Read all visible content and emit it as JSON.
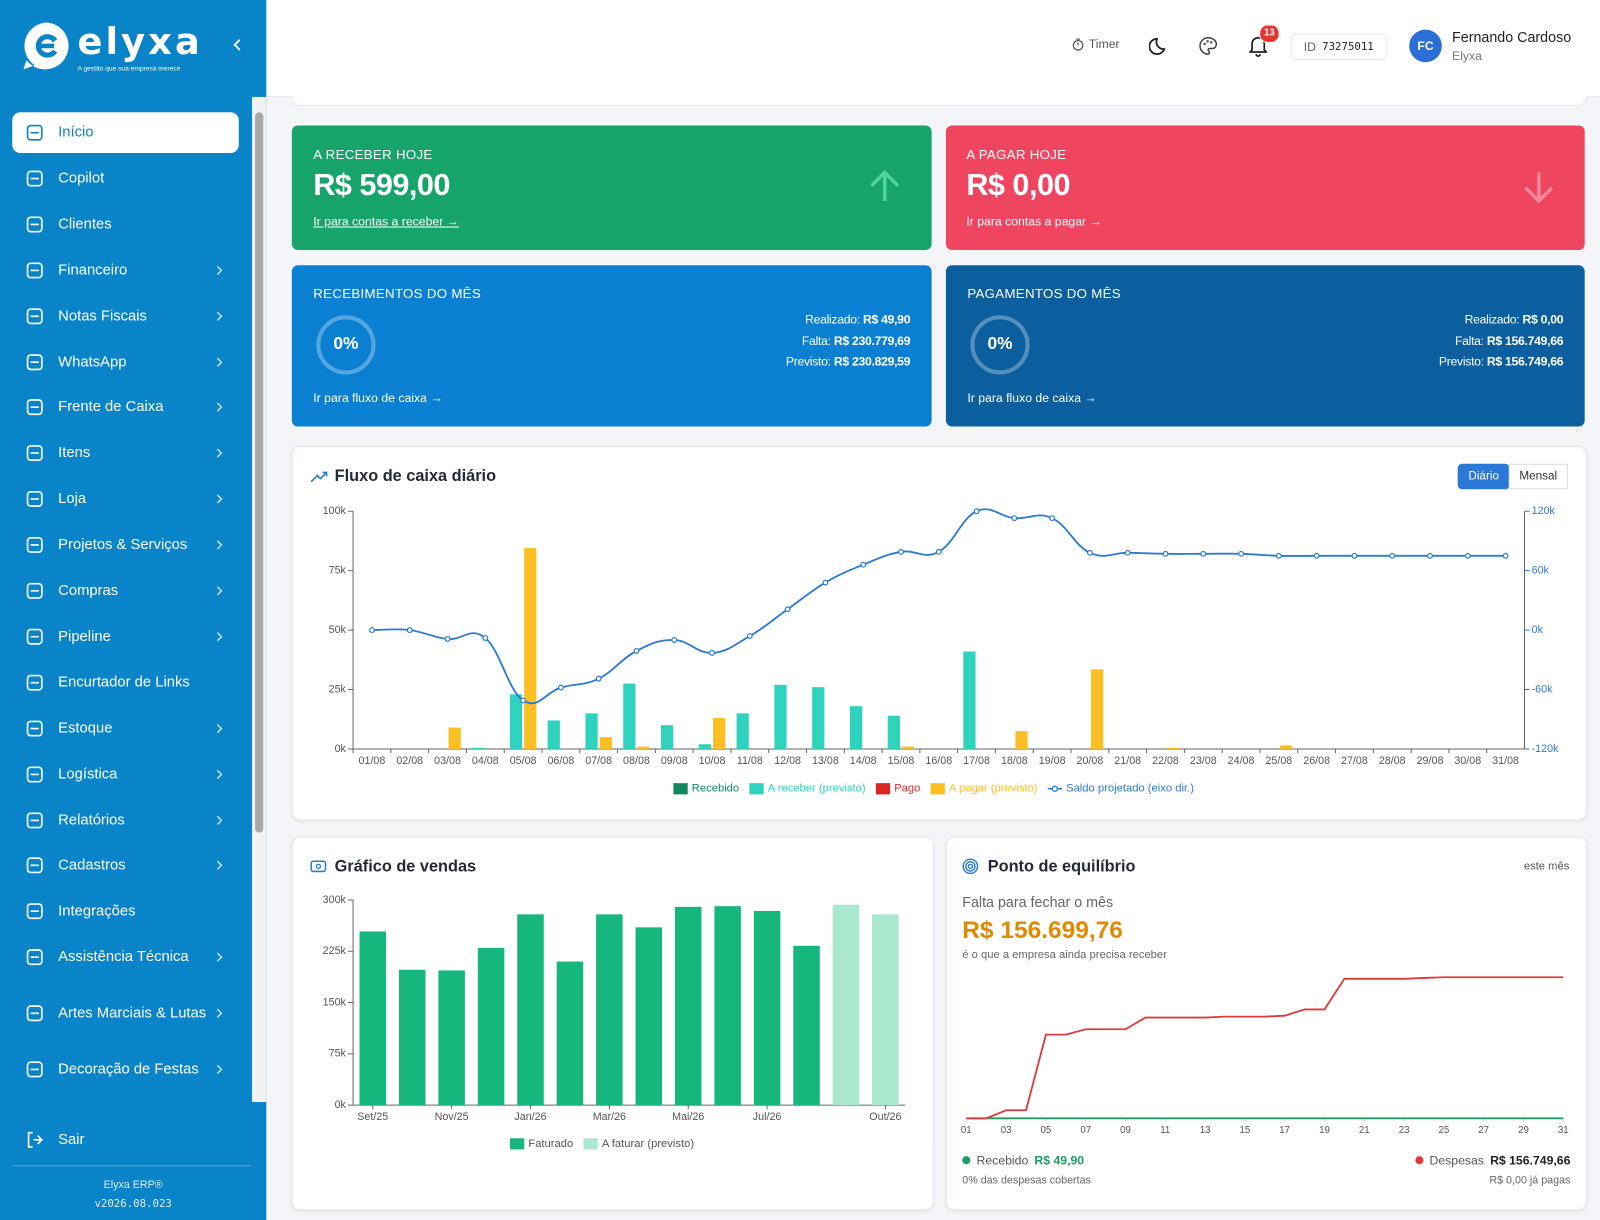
{
  "sidebar": {
    "logo": "elyxa",
    "tagline": "A gestão que sua empresa merece",
    "menu": [
      {
        "label": "Início",
        "submenu": false,
        "active": true
      },
      {
        "label": "Copilot",
        "submenu": false,
        "active": false
      },
      {
        "label": "Clientes",
        "submenu": false,
        "active": false
      },
      {
        "label": "Financeiro",
        "submenu": true,
        "active": false
      },
      {
        "label": "Notas Fiscais",
        "submenu": true,
        "active": false
      },
      {
        "label": "WhatsApp",
        "submenu": true,
        "active": false
      },
      {
        "label": "Frente de Caixa",
        "submenu": true,
        "active": false
      },
      {
        "label": "Itens",
        "submenu": true,
        "active": false
      },
      {
        "label": "Loja",
        "submenu": true,
        "active": false
      },
      {
        "label": "Projetos & Serviços",
        "submenu": true,
        "active": false
      },
      {
        "label": "Compras",
        "submenu": true,
        "active": false
      },
      {
        "label": "Pipeline",
        "submenu": true,
        "active": false
      },
      {
        "label": "Encurtador de Links",
        "submenu": false,
        "active": false
      },
      {
        "label": "Estoque",
        "submenu": true,
        "active": false
      },
      {
        "label": "Logística",
        "submenu": true,
        "active": false
      },
      {
        "label": "Relatórios",
        "submenu": true,
        "active": false
      },
      {
        "label": "Cadastros",
        "submenu": true,
        "active": false
      },
      {
        "label": "Integrações",
        "submenu": false,
        "active": false
      },
      {
        "label": "Assistência Técnica",
        "submenu": true,
        "active": false
      },
      {
        "label": "Artes Marciais & Lutas",
        "submenu": true,
        "active": false
      },
      {
        "label": "Decoração de Festas",
        "submenu": true,
        "active": false
      }
    ],
    "logout": "Sair",
    "product": "Elyxa ERP®",
    "version": "v2026.08.023"
  },
  "header": {
    "timer": "Timer",
    "notifications": 13,
    "id_label": "ID",
    "id": "73275011",
    "avatar": "FC",
    "user": "Fernando Cardoso",
    "company": "Elyxa"
  },
  "cards": [
    {
      "title": "A RECEBER HOJE",
      "value": "R$ 599,00",
      "link": "Ir para contas a receber →",
      "color": "#17a46b"
    },
    {
      "title": "A PAGAR HOJE",
      "value": "R$ 0,00",
      "link": "Ir para contas a pagar →",
      "color": "#ef4560"
    }
  ],
  "month_cards": [
    {
      "title": "RECEBIMENTOS DO MÊS",
      "percent": "0%",
      "color": "#0b80d3",
      "rows": [
        {
          "label": "Realizado:",
          "value": "R$ 49,90"
        },
        {
          "label": "Falta:",
          "value": "R$ 230.779,69"
        },
        {
          "label": "Previsto:",
          "value": "R$ 230.829,59"
        }
      ],
      "link": "Ir para fluxo de caixa →"
    },
    {
      "title": "PAGAMENTOS DO MÊS",
      "percent": "0%",
      "color": "#0b5f9e",
      "rows": [
        {
          "label": "Realizado:",
          "value": "R$ 0,00"
        },
        {
          "label": "Falta:",
          "value": "R$ 156.749,66"
        },
        {
          "label": "Previsto:",
          "value": "R$ 156.749,66"
        }
      ],
      "link": "Ir para fluxo de caixa →"
    }
  ],
  "chart_data": [
    {
      "type": "combo",
      "title": "Fluxo de caixa diário",
      "toggle": [
        "Diário",
        "Mensal"
      ],
      "categories": [
        "01/08",
        "02/08",
        "03/08",
        "04/08",
        "05/08",
        "06/08",
        "07/08",
        "08/08",
        "09/08",
        "10/08",
        "11/08",
        "12/08",
        "13/08",
        "14/08",
        "15/08",
        "16/08",
        "17/08",
        "18/08",
        "19/08",
        "20/08",
        "21/08",
        "22/08",
        "23/08",
        "24/08",
        "25/08",
        "26/08",
        "27/08",
        "28/08",
        "29/08",
        "30/08",
        "31/08"
      ],
      "series": [
        {
          "name": "Recebido",
          "color": "#13865b",
          "type": "bar",
          "stack": "in",
          "values": [
            0,
            0,
            0,
            0,
            0,
            0,
            0,
            0,
            0,
            0,
            0,
            0,
            0,
            0,
            0,
            0,
            0,
            0,
            0,
            0,
            0,
            0,
            0,
            0,
            0,
            0,
            0,
            0,
            0,
            0,
            0
          ]
        },
        {
          "name": "A receber (previsto)",
          "color": "#2fd3bd",
          "type": "bar",
          "stack": "in",
          "values": [
            0,
            0,
            0,
            500,
            23000,
            12000,
            15000,
            27500,
            10000,
            2000,
            15000,
            27000,
            26000,
            18000,
            14000,
            0,
            41000,
            0,
            0,
            0,
            0,
            0,
            0,
            0,
            0,
            0,
            0,
            0,
            0,
            0,
            0
          ]
        },
        {
          "name": "Pago",
          "color": "#dc2626",
          "type": "bar",
          "stack": "out",
          "values": [
            0,
            0,
            0,
            0,
            0,
            0,
            0,
            0,
            0,
            0,
            0,
            0,
            0,
            0,
            0,
            0,
            0,
            0,
            0,
            0,
            0,
            0,
            0,
            0,
            0,
            0,
            0,
            0,
            0,
            0,
            0
          ]
        },
        {
          "name": "A pagar (previsto)",
          "color": "#fbbf24",
          "type": "bar",
          "stack": "out",
          "values": [
            0,
            0,
            9000,
            0,
            84500,
            0,
            5000,
            1000,
            0,
            13000,
            0,
            0,
            0,
            0,
            1000,
            0,
            0,
            7500,
            0,
            33500,
            0,
            500,
            0,
            0,
            1500,
            0,
            0,
            0,
            0,
            0,
            0
          ]
        },
        {
          "name": "Saldo projetado (eixo dir.)",
          "color": "#2b7bd0",
          "type": "line",
          "axis": "y2",
          "values": [
            0,
            0,
            -9000,
            -8000,
            -71000,
            -58000,
            -49000,
            -21000,
            -10000,
            -23000,
            -6000,
            21000,
            48000,
            66000,
            79000,
            79000,
            120000,
            113000,
            113000,
            78000,
            78000,
            77000,
            77000,
            77000,
            75000,
            75000,
            75000,
            75000,
            75000,
            75000,
            75000
          ]
        }
      ],
      "ylim": [
        0,
        100000
      ],
      "yticks": [
        {
          "value": 0,
          "label": "0k"
        },
        {
          "value": 25000,
          "label": "25k"
        },
        {
          "value": 50000,
          "label": "50k"
        },
        {
          "value": 75000,
          "label": "75k"
        },
        {
          "value": 100000,
          "label": "100k"
        }
      ],
      "y2lim": [
        -120000,
        120000
      ],
      "y2ticks": [
        {
          "value": -120000,
          "label": "-120k"
        },
        {
          "value": -60000,
          "label": "-60k"
        },
        {
          "value": 0,
          "label": "0k"
        },
        {
          "value": 60000,
          "label": "60k"
        },
        {
          "value": 120000,
          "label": "120k"
        }
      ],
      "grid": false,
      "legend": "bottom"
    },
    {
      "type": "bar",
      "title": "Gráfico de vendas",
      "categories": [
        "Set/25",
        null,
        "Nov/25",
        null,
        "Jan/26",
        null,
        "Mar/26",
        null,
        "Mai/26",
        null,
        "Jul/26",
        null,
        null,
        "Out/26"
      ],
      "series": [
        {
          "name": "Faturado",
          "color": "#16b77c",
          "values": [
            254000,
            198000,
            197000,
            230000,
            279000,
            210000,
            279000,
            260000,
            290000,
            291000,
            284000,
            233000,
            null,
            null
          ]
        },
        {
          "name": "A faturar (previsto)",
          "color": "#a9e8cf",
          "values": [
            null,
            null,
            null,
            null,
            null,
            null,
            null,
            null,
            null,
            null,
            null,
            null,
            293000,
            279000
          ]
        }
      ],
      "ylim": [
        0,
        300000
      ],
      "yticks": [
        {
          "value": 0,
          "label": "0k"
        },
        {
          "value": 75000,
          "label": "75k"
        },
        {
          "value": 150000,
          "label": "150k"
        },
        {
          "value": 225000,
          "label": "225k"
        },
        {
          "value": 300000,
          "label": "300k"
        }
      ],
      "grid": false,
      "legend": "bottom"
    },
    {
      "type": "line",
      "title": "Ponto de equilíbrio",
      "subtitle": "este mês",
      "x": [
        1,
        2,
        3,
        4,
        5,
        6,
        7,
        8,
        9,
        10,
        11,
        12,
        13,
        14,
        15,
        16,
        17,
        18,
        19,
        20,
        21,
        22,
        23,
        24,
        25,
        26,
        27,
        28,
        29,
        30,
        31
      ],
      "series": [
        {
          "name": "Recebido",
          "color": "#1f9d60",
          "values": [
            49.9,
            49.9,
            49.9,
            49.9,
            49.9,
            49.9,
            49.9,
            49.9,
            49.9,
            49.9,
            49.9,
            49.9,
            49.9,
            49.9,
            49.9,
            49.9,
            49.9,
            49.9,
            49.9,
            49.9,
            49.9,
            49.9,
            49.9,
            49.9,
            49.9,
            49.9,
            49.9,
            49.9,
            49.9,
            49.9,
            49.9
          ]
        },
        {
          "name": "Despesas",
          "color": "#dc3b3b",
          "values": [
            0,
            0,
            9000,
            9000,
            93000,
            93000,
            99000,
            99000,
            99000,
            112000,
            112000,
            112000,
            112000,
            113000,
            113000,
            113000,
            114000,
            121000,
            121000,
            155000,
            155000,
            155000,
            155000,
            156000,
            156749.66,
            156749.66,
            156749.66,
            156749.66,
            156749.66,
            156749.66,
            156749.66
          ]
        }
      ],
      "xlim": [
        1,
        31
      ],
      "xticks": [
        {
          "value": 1,
          "label": "01"
        },
        {
          "value": 3,
          "label": "03"
        },
        {
          "value": 5,
          "label": "05"
        },
        {
          "value": 7,
          "label": "07"
        },
        {
          "value": 9,
          "label": "09"
        },
        {
          "value": 11,
          "label": "11"
        },
        {
          "value": 13,
          "label": "13"
        },
        {
          "value": 15,
          "label": "15"
        },
        {
          "value": 17,
          "label": "17"
        },
        {
          "value": 19,
          "label": "19"
        },
        {
          "value": 21,
          "label": "21"
        },
        {
          "value": 23,
          "label": "23"
        },
        {
          "value": 25,
          "label": "25"
        },
        {
          "value": 27,
          "label": "27"
        },
        {
          "value": 29,
          "label": "29"
        },
        {
          "value": 31,
          "label": "31"
        }
      ],
      "ylim": [
        0,
        170000
      ],
      "grid": false
    }
  ],
  "breakeven": {
    "caption": "Falta para fechar o mês",
    "value": "R$ 156.699,76",
    "note": "é o que a empresa ainda precisa receber",
    "received": "R$ 49,90",
    "received_note": "0% das despesas cobertas",
    "expenses": "R$ 156.749,66",
    "expenses_note": "R$ 0,00 já pagas"
  }
}
